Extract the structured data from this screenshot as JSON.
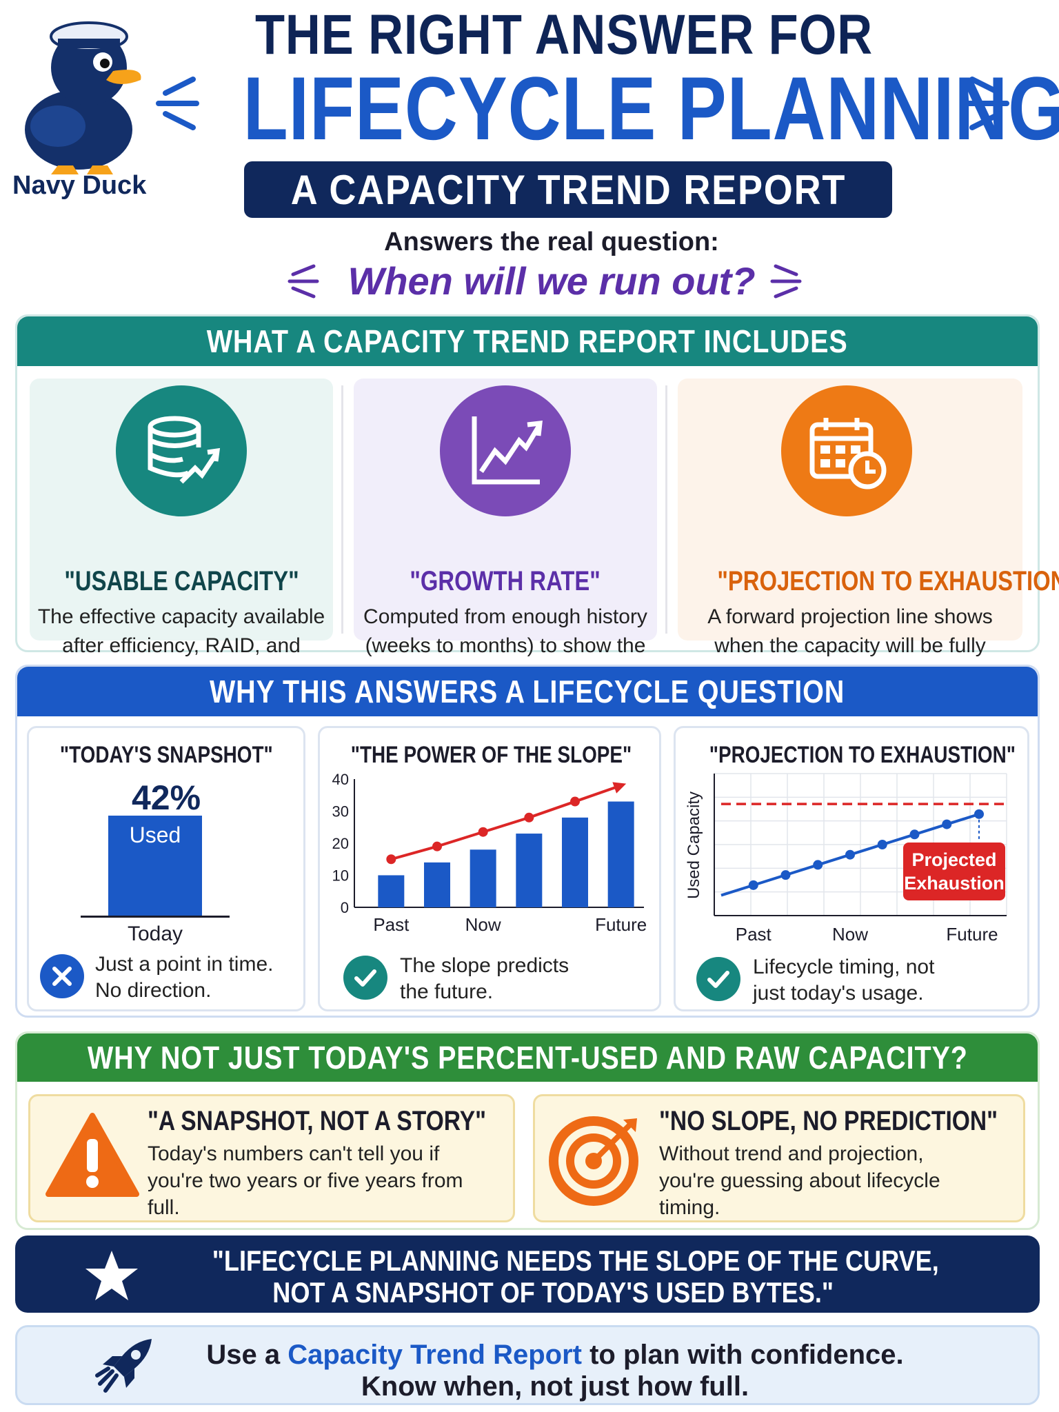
{
  "header": {
    "mascot_name": "Navy Duck",
    "title_line1": "THE RIGHT ANSWER FOR",
    "title_line2": "LIFECYCLE PLANNING",
    "subtitle": "A CAPACITY TREND REPORT",
    "answers_label": "Answers the real question:",
    "question": "When will we run out?"
  },
  "includes": {
    "heading": "WHAT A CAPACITY TREND REPORT INCLUDES",
    "cards": [
      {
        "title": "\"USABLE CAPACITY\"",
        "desc": "The effective capacity available after efficiency, RAID, and overhead.",
        "icon": "database-growth-icon",
        "color": "#17877f"
      },
      {
        "title": "\"GROWTH RATE\"",
        "desc": "Computed from enough history (weeks to months) to show the real trend.",
        "icon": "trend-line-icon",
        "color": "#7b4bb7"
      },
      {
        "title": "\"PROJECTION TO EXHAUSTION\"",
        "desc": "A forward projection line shows when the capacity will be fully used.",
        "icon": "calendar-clock-icon",
        "color": "#ee7a15"
      }
    ]
  },
  "why": {
    "heading": "WHY THIS ANSWERS A LIFECYCLE QUESTION",
    "snapshot": {
      "title": "\"TODAY'S SNAPSHOT\"",
      "value": "42%",
      "bar_label": "Used",
      "axis_label": "Today",
      "foot": "Just a point in time. No direction.",
      "foot_icon": "x-circle-icon"
    },
    "slope": {
      "title": "\"THE POWER OF THE SLOPE\"",
      "foot": "The slope predicts the future.",
      "foot_icon": "check-circle-icon"
    },
    "projection": {
      "title": "\"PROJECTION TO EXHAUSTION\"",
      "ylabel": "Used Capacity",
      "callout": "Projected Exhaustion",
      "foot": "Lifecycle timing, not just today's usage.",
      "foot_icon": "check-circle-icon"
    }
  },
  "whynot": {
    "heading": "WHY NOT JUST TODAY'S PERCENT-USED AND RAW CAPACITY?",
    "cards": [
      {
        "title": "\"A SNAPSHOT, NOT A STORY\"",
        "desc": "Today's numbers can't tell you if you're two years or five years from full.",
        "icon": "warning-icon"
      },
      {
        "title": "\"NO SLOPE, NO PREDICTION\"",
        "desc": "Without trend and projection, you're guessing about lifecycle timing.",
        "icon": "target-icon"
      }
    ]
  },
  "quote": {
    "line1": "\"LIFECYCLE PLANNING NEEDS THE SLOPE OF THE CURVE,",
    "line2": "NOT A SNAPSHOT OF TODAY'S USED BYTES.\""
  },
  "cta": {
    "prefix": "Use a ",
    "highlight": "Capacity Trend Report",
    "suffix": " to plan with confidence.",
    "line2": "Know when, not just how full."
  },
  "chart_data": [
    {
      "type": "bar",
      "title": "\"TODAY'S SNAPSHOT\"",
      "categories": [
        "Today"
      ],
      "values": [
        42
      ],
      "ylim": [
        0,
        100
      ]
    },
    {
      "type": "bar",
      "title": "\"THE POWER OF THE SLOPE\"",
      "categories": [
        "Past",
        "",
        "Now",
        "",
        "",
        "Future"
      ],
      "x_tick_labels": [
        "Past",
        "Now",
        "Future"
      ],
      "values": [
        10,
        14,
        18,
        23,
        28,
        33
      ],
      "trend_values": [
        15,
        19,
        23.5,
        28,
        33,
        38
      ],
      "ylim": [
        0,
        40
      ],
      "yticks": [
        0,
        10,
        20,
        30,
        40
      ],
      "colors": {
        "bars": "#1b59c6",
        "trend": "#dc2626"
      }
    },
    {
      "type": "line",
      "title": "\"PROJECTION TO EXHAUSTION\"",
      "ylabel": "Used Capacity",
      "x_tick_labels": [
        "Past",
        "Now",
        "Future"
      ],
      "x": [
        0,
        1,
        2,
        3,
        4,
        5,
        6,
        7,
        8
      ],
      "values": [
        2,
        3,
        4,
        5,
        6,
        7,
        8,
        9,
        10
      ],
      "limit": 11,
      "ylim": [
        0,
        14
      ],
      "grid": true,
      "colors": {
        "line": "#1b59c6",
        "limit": "#dc2626"
      }
    }
  ]
}
